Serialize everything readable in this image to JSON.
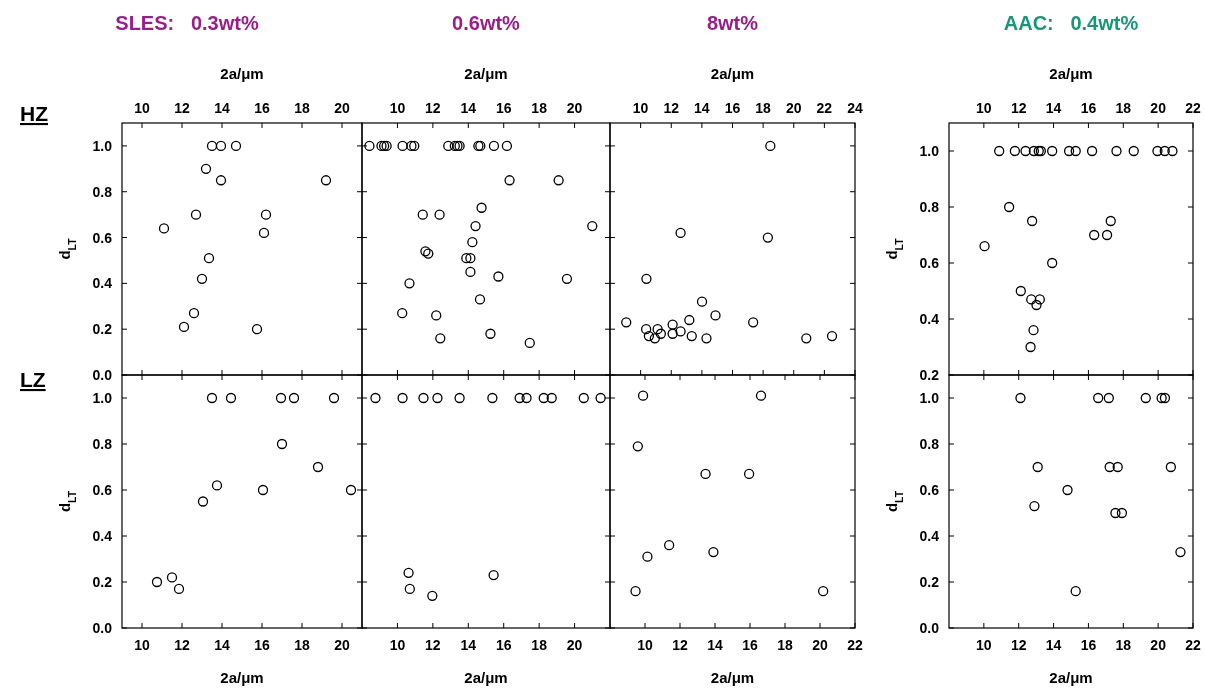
{
  "chart_data": [
    {
      "type": "scatter",
      "title": "SLES:   0.3wt%",
      "annotations": [
        "HZ"
      ],
      "xlabel": "2a/μm",
      "ylabel": "d$_{LT}$",
      "marker": "circle",
      "color": "#000000",
      "xlim": [
        9,
        21
      ],
      "xticks": [
        10,
        12,
        14,
        16,
        18,
        20
      ],
      "ylim": [
        0,
        1.1
      ],
      "yticks": [
        {
          "value": 0,
          "label": "0.0"
        },
        {
          "value": 0.2,
          "label": "0.2"
        },
        {
          "value": 0.4,
          "label": "0.4"
        },
        {
          "value": 0.6,
          "label": "0.6"
        },
        {
          "value": 0.8,
          "label": "0.8"
        },
        {
          "value": 1,
          "label": "1.0"
        }
      ],
      "x": [
        13.5,
        13.95,
        14.7,
        13.2,
        13.95,
        19.2,
        11.1,
        12.7,
        16.2,
        16.1,
        13.35,
        13.0,
        12.6,
        12.1,
        15.75
      ],
      "values": [
        1.0,
        1.0,
        1.0,
        0.9,
        0.85,
        0.85,
        0.64,
        0.7,
        0.7,
        0.62,
        0.51,
        0.42,
        0.27,
        0.21,
        0.2
      ]
    },
    {
      "type": "scatter",
      "title": "0.6wt%",
      "xlabel": "2a/μm",
      "tick_labels": "x",
      "marker": "circle",
      "color": "#000000",
      "xlim": [
        8,
        22
      ],
      "xticks": [
        10,
        12,
        14,
        16,
        18,
        20
      ],
      "ylim": [
        0,
        1.1
      ],
      "yticks": [
        0,
        0.2,
        0.4,
        0.6,
        0.8,
        1
      ],
      "x": [
        8.42,
        9.1,
        9.25,
        9.39,
        10.29,
        10.79,
        10.95,
        12.87,
        13.24,
        13.39,
        13.51,
        14.57,
        14.68,
        15.45,
        16.18,
        16.33,
        19.1,
        14.75,
        11.43,
        12.38,
        14.41,
        21.0,
        14.23,
        11.58,
        11.74,
        13.89,
        14.12,
        14.12,
        15.7,
        19.57,
        10.68,
        14.66,
        10.27,
        12.19,
        15.25,
        12.42,
        17.47
      ],
      "values": [
        1,
        1,
        1,
        1,
        1,
        1,
        1,
        1,
        1,
        1,
        1,
        1,
        1,
        1,
        1,
        0.85,
        0.85,
        0.73,
        0.7,
        0.7,
        0.65,
        0.65,
        0.58,
        0.54,
        0.53,
        0.51,
        0.51,
        0.45,
        0.43,
        0.42,
        0.4,
        0.33,
        0.27,
        0.26,
        0.18,
        0.16,
        0.14
      ]
    },
    {
      "type": "scatter",
      "title": "8wt%",
      "xlabel": "2a/μm",
      "tick_labels": "x",
      "marker": "circle",
      "color": "#000000",
      "xlim": [
        8,
        24
      ],
      "xticks": [
        10,
        12,
        14,
        16,
        18,
        20,
        22,
        24
      ],
      "ylim": [
        0,
        1.1
      ],
      "yticks": [
        0,
        0.2,
        0.4,
        0.6,
        0.8,
        1
      ],
      "x": [
        18.47,
        12.61,
        18.31,
        10.38,
        14.01,
        14.89,
        9.06,
        13.18,
        17.35,
        12.09,
        10.36,
        11.11,
        12.61,
        10.54,
        11.32,
        10.93,
        12.09,
        13.34,
        14.3,
        20.82,
        22.5
      ],
      "values": [
        1.0,
        0.62,
        0.6,
        0.42,
        0.32,
        0.26,
        0.23,
        0.24,
        0.23,
        0.22,
        0.2,
        0.2,
        0.19,
        0.17,
        0.18,
        0.16,
        0.18,
        0.17,
        0.16,
        0.16,
        0.17
      ]
    },
    {
      "type": "scatter",
      "title": "AAC:   0.4wt%",
      "xlabel": "2a/μm",
      "ylabel": "d$_{LT}$",
      "marker": "circle",
      "color": "#000000",
      "xlim": [
        8,
        22
      ],
      "xticks": [
        10,
        12,
        14,
        16,
        18,
        20,
        22
      ],
      "ylim": [
        0.2,
        1.1
      ],
      "yticks": [
        {
          "value": 0.2,
          "label": "0.2"
        },
        {
          "value": 0.4,
          "label": "0.4"
        },
        {
          "value": 0.6,
          "label": "0.6"
        },
        {
          "value": 0.8,
          "label": "0.8"
        },
        {
          "value": 1,
          "label": "1.0"
        }
      ],
      "x": [
        10.88,
        11.78,
        12.39,
        12.87,
        13.15,
        13.27,
        13.92,
        14.89,
        15.27,
        16.21,
        17.61,
        18.6,
        19.96,
        20.38,
        20.82,
        11.45,
        12.77,
        17.28,
        16.33,
        17.07,
        10.04,
        13.92,
        12.12,
        12.72,
        13.21,
        13.02,
        12.85,
        12.68
      ],
      "values": [
        1,
        1,
        1,
        1,
        1,
        1,
        1,
        1,
        1,
        1,
        1,
        1,
        1,
        1,
        1,
        0.8,
        0.75,
        0.75,
        0.7,
        0.7,
        0.66,
        0.6,
        0.5,
        0.47,
        0.47,
        0.45,
        0.36,
        0.3
      ]
    },
    {
      "type": "scatter",
      "annotations": [
        "LZ"
      ],
      "xlabel": "2a/μm",
      "ylabel": "d$_{LT}$",
      "marker": "circle",
      "color": "#000000",
      "xlim": [
        9,
        21
      ],
      "xticks": [
        10,
        12,
        14,
        16,
        18,
        20
      ],
      "ylim": [
        0,
        1.1
      ],
      "yticks": [
        {
          "value": 0,
          "label": "0.0"
        },
        {
          "value": 0.2,
          "label": "0.2"
        },
        {
          "value": 0.4,
          "label": "0.4"
        },
        {
          "value": 0.6,
          "label": "0.6"
        },
        {
          "value": 0.8,
          "label": "0.8"
        },
        {
          "value": 1,
          "label": "1.0"
        }
      ],
      "x": [
        13.5,
        14.45,
        16.95,
        17.6,
        19.6,
        17.0,
        18.8,
        13.75,
        16.05,
        20.45,
        13.05,
        10.75,
        11.5,
        11.85
      ],
      "values": [
        1,
        1,
        1,
        1,
        1,
        0.8,
        0.7,
        0.62,
        0.6,
        0.6,
        0.55,
        0.2,
        0.22,
        0.17
      ]
    },
    {
      "type": "scatter",
      "xlabel": "2a/μm",
      "tick_labels": "x",
      "marker": "circle",
      "color": "#000000",
      "xlim": [
        8,
        22
      ],
      "xticks": [
        10,
        12,
        14,
        16,
        18,
        20
      ],
      "ylim": [
        0,
        1.1
      ],
      "yticks": [
        0,
        0.2,
        0.4,
        0.6,
        0.8,
        1
      ],
      "x": [
        8.76,
        10.29,
        11.47,
        12.26,
        13.51,
        15.36,
        16.9,
        17.29,
        18.26,
        18.71,
        20.52,
        21.47,
        10.63,
        10.7,
        15.43,
        11.97
      ],
      "values": [
        1,
        1,
        1,
        1,
        1,
        1,
        1,
        1,
        1,
        1,
        1,
        1,
        0.24,
        0.17,
        0.23,
        0.14
      ]
    },
    {
      "type": "scatter",
      "xlabel": "2a/μm",
      "tick_labels": "x",
      "marker": "circle",
      "color": "#000000",
      "xlim": [
        8,
        22
      ],
      "xticks": [
        10,
        12,
        14,
        16,
        18,
        20,
        22
      ],
      "ylim": [
        0,
        1.1
      ],
      "yticks": [
        0,
        0.2,
        0.4,
        0.6,
        0.8,
        1
      ],
      "x": [
        9.89,
        16.63,
        9.59,
        13.46,
        15.95,
        11.38,
        10.14,
        13.91,
        9.46,
        20.18
      ],
      "values": [
        1.01,
        1.01,
        0.79,
        0.67,
        0.67,
        0.36,
        0.31,
        0.33,
        0.16,
        0.16
      ]
    },
    {
      "type": "scatter",
      "xlabel": "2a/μm",
      "ylabel": "d$_{LT}$",
      "marker": "circle",
      "color": "#000000",
      "xlim": [
        8,
        22
      ],
      "xticks": [
        10,
        12,
        14,
        16,
        18,
        20,
        22
      ],
      "ylim": [
        0,
        1.1
      ],
      "yticks": [
        {
          "value": 0,
          "label": "0.0"
        },
        {
          "value": 0.2,
          "label": "0.2"
        },
        {
          "value": 0.4,
          "label": "0.4"
        },
        {
          "value": 0.6,
          "label": "0.6"
        },
        {
          "value": 0.8,
          "label": "0.8"
        },
        {
          "value": 1,
          "label": "1.0"
        }
      ],
      "x": [
        12.1,
        16.56,
        17.17,
        19.29,
        20.2,
        20.39,
        13.09,
        17.22,
        17.68,
        20.73,
        14.8,
        12.9,
        17.55,
        17.92,
        21.28,
        15.27
      ],
      "values": [
        1,
        1,
        1,
        1,
        1,
        1,
        0.7,
        0.7,
        0.7,
        0.7,
        0.6,
        0.53,
        0.5,
        0.5,
        0.33,
        0.16
      ]
    }
  ]
}
